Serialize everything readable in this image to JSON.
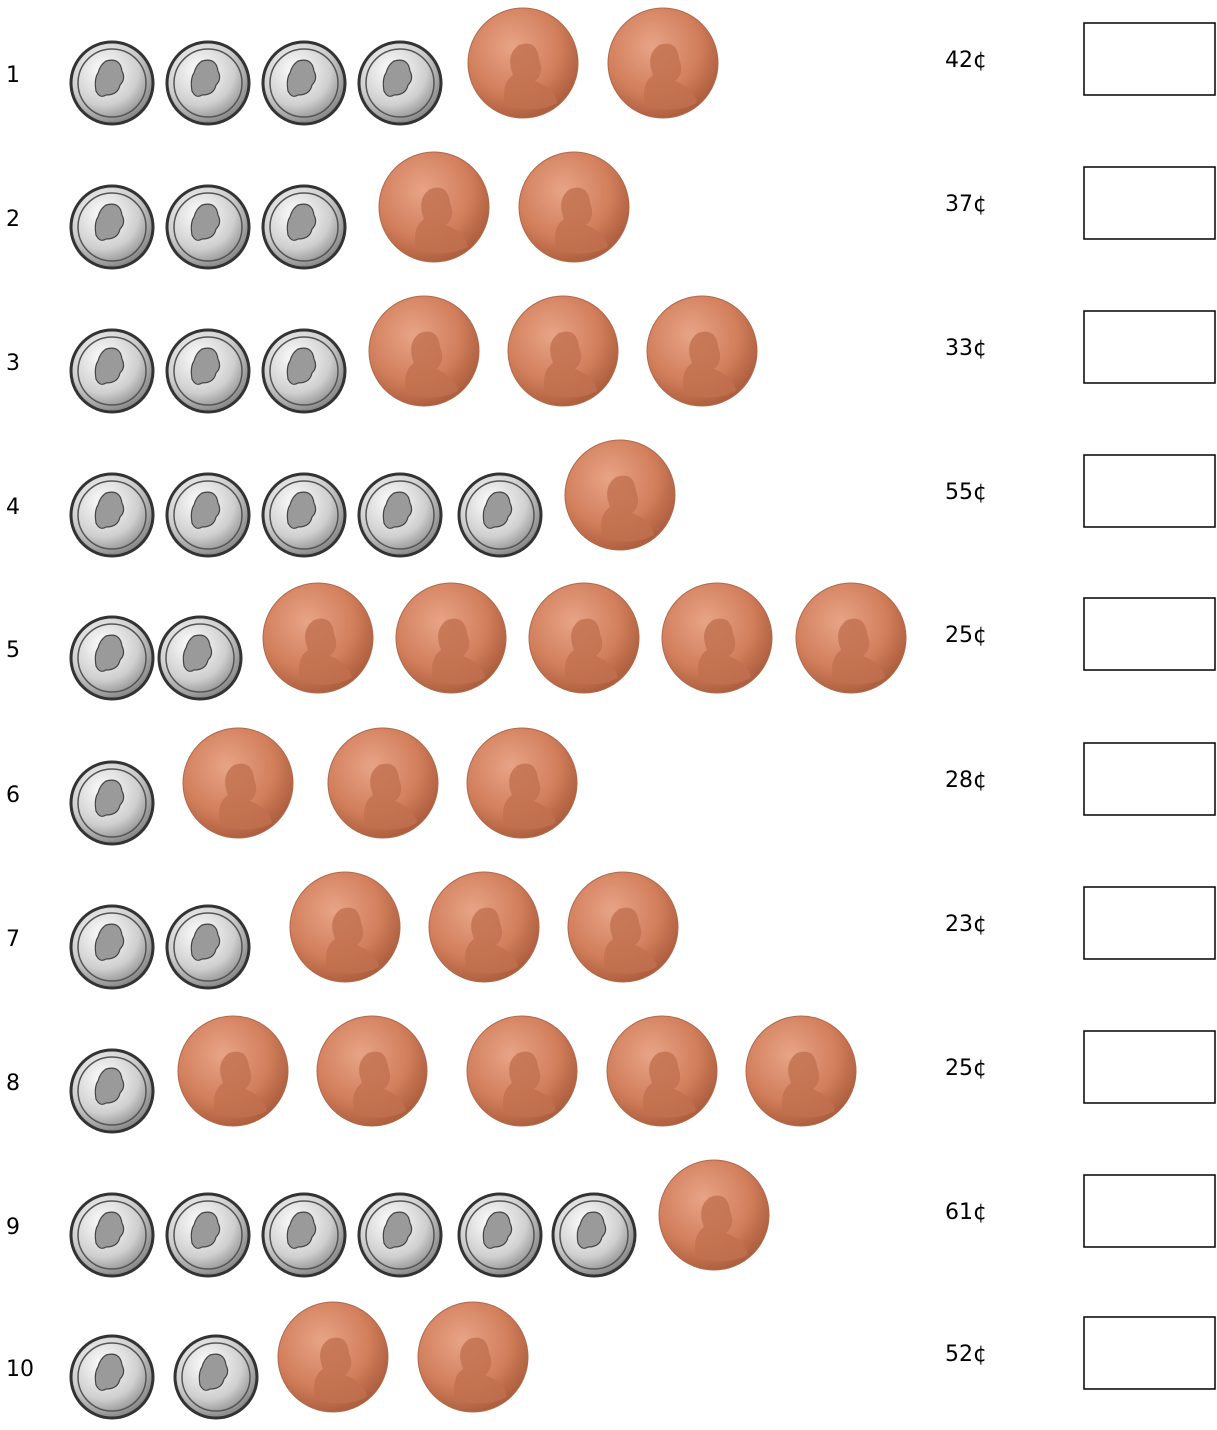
{
  "rows": [
    {
      "number": "1",
      "amount": "42¢"
    },
    {
      "number": "2",
      "amount": "37¢"
    },
    {
      "number": "3",
      "amount": "33¢"
    },
    {
      "number": "4",
      "amount": "55¢"
    },
    {
      "number": "5",
      "amount": "25¢"
    },
    {
      "number": "6",
      "amount": "28¢"
    },
    {
      "number": "7",
      "amount": "23¢"
    },
    {
      "number": "8",
      "amount": "25¢"
    },
    {
      "number": "9",
      "amount": "61¢"
    },
    {
      "number": "10",
      "amount": "52¢"
    }
  ]
}
